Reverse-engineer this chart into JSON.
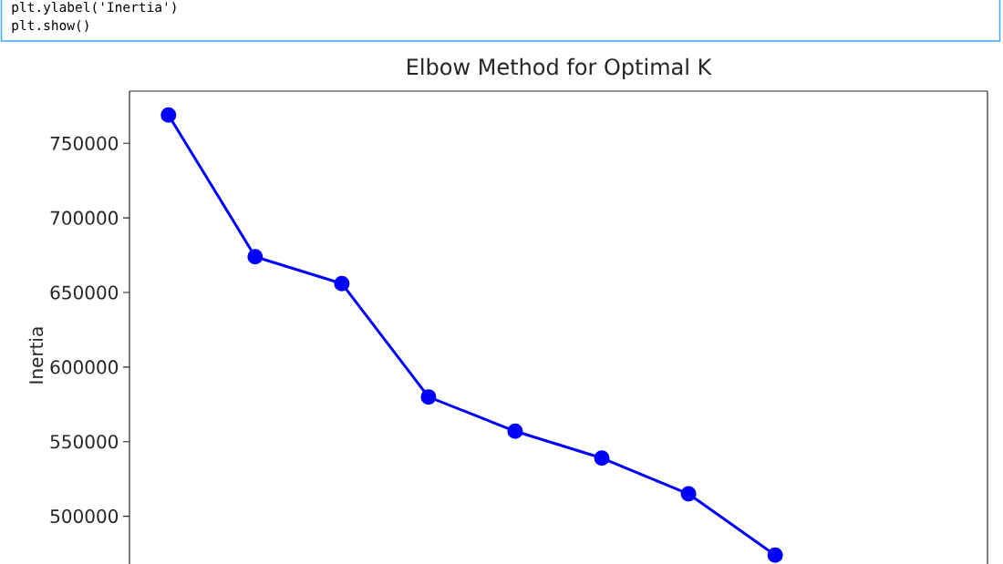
{
  "chart_data": {
    "type": "line",
    "title": "Elbow Method for Optimal K",
    "ylabel": "Inertia",
    "categories": [
      null,
      null,
      null,
      null,
      null,
      null,
      null,
      null,
      null,
      null
    ],
    "values": [
      769000,
      674000,
      656000,
      580000,
      557000,
      539000,
      515000,
      474000,
      null,
      null
    ],
    "color": "#0000ff",
    "marker": "circle",
    "line_style": "solid",
    "ylim": [
      468000,
      785000
    ],
    "yticks": [
      500000,
      550000,
      600000,
      650000,
      700000,
      750000
    ],
    "annotations": [
      "plt.ylabel('Inertia')",
      "plt.show()"
    ]
  }
}
